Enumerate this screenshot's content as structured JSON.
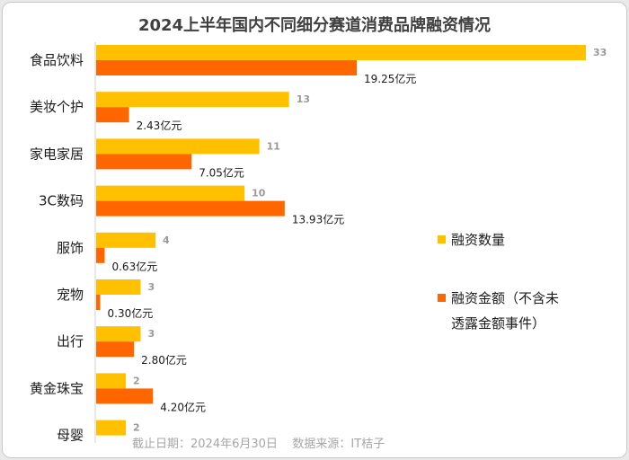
{
  "chart_data": {
    "type": "bar",
    "orientation": "horizontal",
    "title": "2024上半年国内不同细分赛道消费品牌融资情况",
    "categories": [
      "食品饮料",
      "美妆个护",
      "家电家居",
      "3C数码",
      "服饰",
      "宠物",
      "出行",
      "黄金珠宝",
      "母婴"
    ],
    "series": [
      {
        "name": "融资数量",
        "color": "#FFC000",
        "values": [
          33,
          13,
          11,
          10,
          4,
          3,
          3,
          2,
          2
        ],
        "labels": [
          "33",
          "13",
          "11",
          "10",
          "4",
          "3",
          "3",
          "2",
          "2"
        ]
      },
      {
        "name": "融资金额（不含未透露金额事件）",
        "legend_lines": [
          "融资金额（不含未",
          "透露金额事件）"
        ],
        "color": "#FF6600",
        "values": [
          19.25,
          2.43,
          7.05,
          13.93,
          0.63,
          0.3,
          2.8,
          4.2,
          null
        ],
        "labels": [
          "19.25亿元",
          "2.43亿元",
          "7.05亿元",
          "13.93亿元",
          "0.63亿元",
          "0.30亿元",
          "2.80亿元",
          "4.20亿元",
          ""
        ]
      }
    ],
    "legend_position": "right",
    "grid": false,
    "source_note": "截止日期：2024年6月30日    数据来源：IT桔子"
  }
}
